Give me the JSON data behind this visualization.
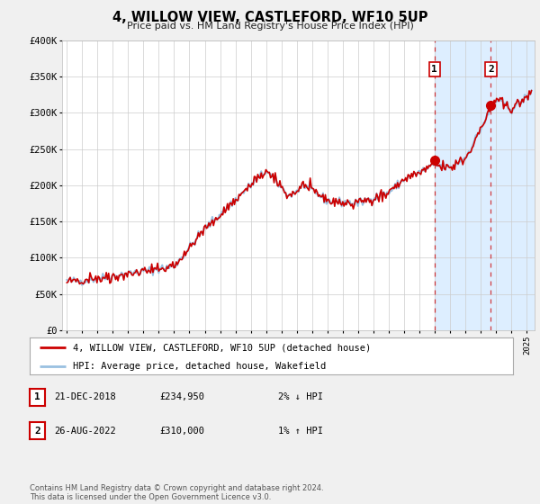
{
  "title": "4, WILLOW VIEW, CASTLEFORD, WF10 5UP",
  "subtitle": "Price paid vs. HM Land Registry's House Price Index (HPI)",
  "ylim": [
    0,
    400000
  ],
  "xlim_start": 1994.7,
  "xlim_end": 2025.5,
  "hpi_color": "#99c0e0",
  "price_color": "#cc0000",
  "background_color": "#f0f0f0",
  "plot_bg_color": "#ffffff",
  "shade_color": "#ddeeff",
  "vline1_x": 2018.97,
  "vline2_x": 2022.65,
  "point1_x": 2018.97,
  "point1_y": 234950,
  "point2_x": 2022.65,
  "point2_y": 310000,
  "legend_line1": "4, WILLOW VIEW, CASTLEFORD, WF10 5UP (detached house)",
  "legend_line2": "HPI: Average price, detached house, Wakefield",
  "annotation1_date": "21-DEC-2018",
  "annotation1_price": "£234,950",
  "annotation1_hpi": "2% ↓ HPI",
  "annotation2_date": "26-AUG-2022",
  "annotation2_price": "£310,000",
  "annotation2_hpi": "1% ↑ HPI",
  "footer": "Contains HM Land Registry data © Crown copyright and database right 2024.\nThis data is licensed under the Open Government Licence v3.0.",
  "ytick_labels": [
    "£0",
    "£50K",
    "£100K",
    "£150K",
    "£200K",
    "£250K",
    "£300K",
    "£350K",
    "£400K"
  ],
  "ytick_values": [
    0,
    50000,
    100000,
    150000,
    200000,
    250000,
    300000,
    350000,
    400000
  ],
  "noise_seed": 42,
  "hpi_noise_scale": 3000,
  "price_noise_scale": 2500
}
